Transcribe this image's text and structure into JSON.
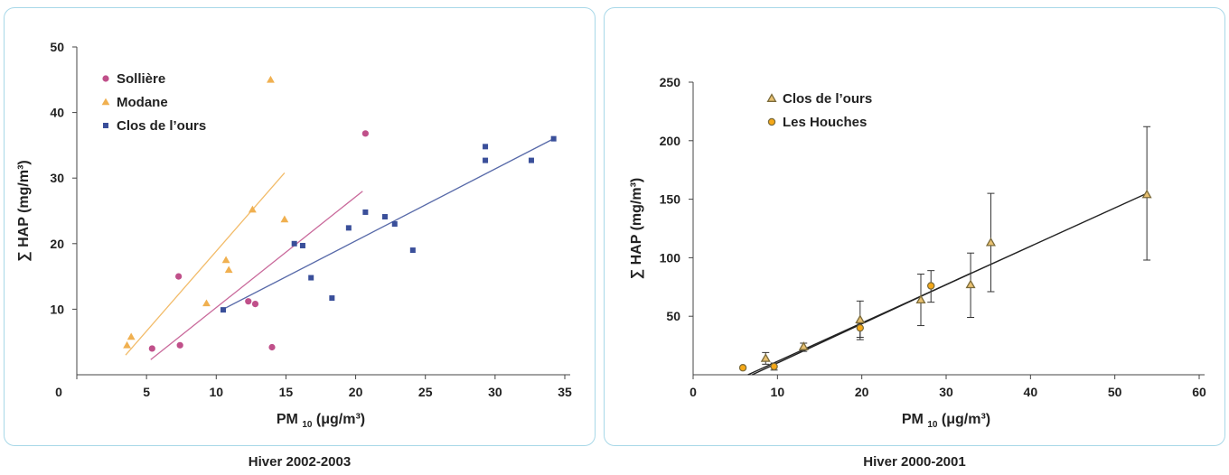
{
  "chart_data": [
    {
      "type": "scatter",
      "title": "",
      "caption": "Hiver 2002-2003",
      "xlabel": "PM₁₀ (μg/m³)",
      "xlabel_main": "PM",
      "xlabel_sub": "10",
      "xlabel_unit": "(μg/m³)",
      "ylabel": "∑ HAP (mg/m³)",
      "xlim": [
        0,
        35
      ],
      "ylim": [
        0,
        50
      ],
      "xticks": [
        0,
        5,
        10,
        15,
        20,
        25,
        30,
        35
      ],
      "yticks": [
        10,
        20,
        30,
        40,
        50
      ],
      "legend_position": "top-left",
      "grid": false,
      "series": [
        {
          "name": "Sollière",
          "color": "#c0508a",
          "marker": "circle",
          "points": [
            [
              5.4,
              4.0
            ],
            [
              7.4,
              4.5
            ],
            [
              7.3,
              15.0
            ],
            [
              12.3,
              11.2
            ],
            [
              12.8,
              10.8
            ],
            [
              14.0,
              4.2
            ],
            [
              20.7,
              36.8
            ]
          ],
          "trendline": [
            [
              5.3,
              2.3
            ],
            [
              20.5,
              28.0
            ]
          ]
        },
        {
          "name": "Modane",
          "color": "#f0b050",
          "marker": "triangle",
          "points": [
            [
              3.6,
              4.5
            ],
            [
              3.9,
              5.8
            ],
            [
              9.3,
              10.9
            ],
            [
              10.7,
              17.5
            ],
            [
              10.9,
              16.0
            ],
            [
              12.6,
              25.2
            ],
            [
              14.9,
              23.7
            ],
            [
              13.9,
              45.0
            ]
          ],
          "trendline": [
            [
              3.5,
              3.0
            ],
            [
              14.9,
              30.8
            ]
          ]
        },
        {
          "name": "Clos de l’ours",
          "color": "#3a4f9a",
          "marker": "square",
          "points": [
            [
              10.5,
              9.9
            ],
            [
              15.6,
              20.0
            ],
            [
              16.2,
              19.7
            ],
            [
              16.8,
              14.8
            ],
            [
              18.3,
              11.7
            ],
            [
              19.5,
              22.4
            ],
            [
              20.7,
              24.8
            ],
            [
              22.1,
              24.1
            ],
            [
              22.8,
              23.0
            ],
            [
              24.1,
              19.0
            ],
            [
              29.3,
              34.8
            ],
            [
              29.3,
              32.7
            ],
            [
              32.6,
              32.7
            ],
            [
              34.2,
              36.0
            ]
          ],
          "trendline": [
            [
              10.5,
              10.0
            ],
            [
              34.2,
              36.0
            ]
          ]
        }
      ]
    },
    {
      "type": "scatter",
      "title": "",
      "caption": "Hiver 2000-2001",
      "xlabel": "PM₁₀ (μg/m³)",
      "xlabel_main": "PM",
      "xlabel_sub": "10",
      "xlabel_unit": "(μg/m³)",
      "ylabel": "∑ HAP (mg/m³)",
      "xlim": [
        0,
        60
      ],
      "ylim": [
        0,
        250
      ],
      "xticks": [
        0,
        10,
        20,
        30,
        40,
        50,
        60
      ],
      "yticks": [
        50,
        100,
        150,
        200,
        250
      ],
      "legend_position": "top-left",
      "grid": false,
      "series": [
        {
          "name": "Clos de l’ours",
          "color": "#7a6a3a",
          "fill": "#e8c070",
          "marker": "triangle",
          "points": [
            [
              8.6,
              14.0
            ],
            [
              13.1,
              24.0
            ],
            [
              19.8,
              47.0
            ],
            [
              27.0,
              64.0
            ],
            [
              32.9,
              77.0
            ],
            [
              35.3,
              113.0
            ],
            [
              53.8,
              154.0
            ]
          ],
          "errors": [
            [
              8.6,
              9.0,
              19.0
            ],
            [
              13.1,
              20.0,
              27.0
            ],
            [
              19.8,
              32.0,
              63.0
            ],
            [
              27.0,
              42.0,
              86.0
            ],
            [
              32.9,
              49.0,
              104.0
            ],
            [
              35.3,
              71.0,
              155.0
            ],
            [
              53.8,
              98.0,
              212.0
            ]
          ],
          "trendline": [
            [
              6.5,
              0.0
            ],
            [
              53.8,
              155.0
            ]
          ]
        },
        {
          "name": "Les Houches",
          "color": "#7a6a3a",
          "fill": "#f5a818",
          "marker": "circle",
          "points": [
            [
              5.9,
              6.0
            ],
            [
              9.6,
              7.0
            ],
            [
              19.8,
              40.0
            ],
            [
              28.2,
              76.0
            ]
          ],
          "errors": [
            [
              9.6,
              4.0,
              10.0
            ],
            [
              19.8,
              30.0,
              44.0
            ],
            [
              28.2,
              62.0,
              89.0
            ]
          ],
          "trendline": [
            [
              7.0,
              0.0
            ],
            [
              33.0,
              87.0
            ]
          ]
        }
      ]
    }
  ]
}
